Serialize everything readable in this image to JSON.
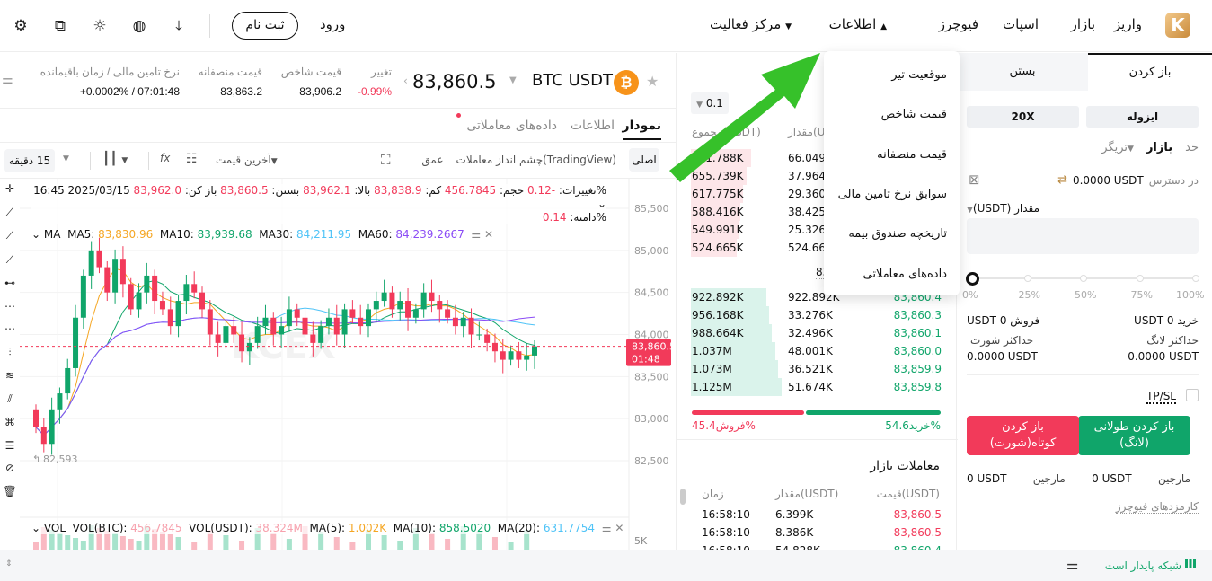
{
  "header": {
    "logo": "K",
    "nav": [
      "واریز",
      "بازار",
      "اسپات",
      "فیوچرز",
      "اطلاعات",
      "مرکز فعالیت"
    ],
    "login": "ورود",
    "signup": "ثبت نام",
    "icons": [
      "download-icon",
      "globe-icon",
      "sun-icon",
      "export-icon",
      "gear-icon"
    ]
  },
  "dropdown": {
    "items": [
      "موقعیت تیر",
      "قیمت شاخص",
      "قیمت منصفانه",
      "سوابق نرخ تامین مالی",
      "تاریخچه صندوق بیمه",
      "داده‌های معاملاتی"
    ]
  },
  "ticker": {
    "symbol": "BTC USDT",
    "price": "83,860.5",
    "change_label": "تغییر",
    "change": "-0.99%",
    "index_label": "قیمت شاخص",
    "index": "83,906.2",
    "fair_label": "قیمت منصفانه",
    "fair": "83,863.2",
    "funding_label": "نرخ تامین مالی / زمان باقیمانده",
    "funding": "+0.0002% / 07:01:48"
  },
  "tabs": [
    "نمودار",
    "اطلاعات",
    "داده‌های معاملاتی"
  ],
  "toolbar": {
    "basic": "اصلی",
    "tradingview": "چشم انداز معاملات(TradingView)",
    "depth": "عمق",
    "last_price": "آخرین قیمت",
    "interval": "15 دقیقه"
  },
  "ohlc": {
    "line1": "2025/03/15 16:45",
    "open_l": "باز کن:",
    "open": "83,962.0",
    "close_l": "بستن:",
    "close": "83,860.5",
    "high_l": "بالا:",
    "high": "83,962.1",
    "low_l": "کم:",
    "low": "83,838.9",
    "vol_l": "حجم:",
    "vol": "456.7845",
    "chg_l": "%تغییرات:",
    "chg": "-0.12",
    "amp_l": "%دامنه:",
    "amp": "0.14"
  },
  "ma": {
    "label": "MA",
    "ma5": "MA5: ",
    "ma5v": "83,830.96",
    "ma10": "MA10: ",
    "ma10v": "83,939.68",
    "ma30": "MA30: ",
    "ma30v": "84,211.95",
    "ma60": "MA60: ",
    "ma60v": "84,239.2667"
  },
  "vol": {
    "label": "VOL",
    "btc": "VOL(BTC): ",
    "btcv": "456.7845",
    "usdt": "VOL(USDT): ",
    "usdtv": "38.324M",
    "m5": "MA(5): ",
    "m5v": "1.002K",
    "m10": "MA(10): ",
    "m10v": "858.5020",
    "m20": "MA(20): ",
    "m20v": "631.7754",
    "axis": "5K"
  },
  "chart_data": {
    "type": "candlestick",
    "y_ticks": [
      "85,500",
      "85,000",
      "84,500",
      "84,000",
      "83,500",
      "83,000",
      "82,500"
    ],
    "ylim": [
      82500,
      85500
    ],
    "current_price": "83,860.5",
    "countdown": "01:48",
    "low_marker": "82,593",
    "watermark": "KCEX",
    "colors": {
      "up": "#10a56a",
      "down": "#f23a5a",
      "ma5": "#f5a623",
      "ma10": "#10a56a",
      "ma30": "#4fc3f7",
      "ma60": "#8b4cf6"
    },
    "closes": [
      82900,
      82700,
      83100,
      83300,
      83600,
      84200,
      84700,
      85000,
      84800,
      84500,
      84900,
      84600,
      84300,
      84500,
      84700,
      84400,
      84300,
      84100,
      84400,
      84600,
      84500,
      84300,
      84000,
      83900,
      84100,
      84000,
      83800,
      83900,
      84100,
      84200,
      84000,
      84100,
      84300,
      84200,
      84000,
      83900,
      84100,
      84200,
      84000,
      84300,
      84200,
      84100,
      84300,
      84400,
      84500,
      84300,
      84400,
      84200,
      84300,
      84500,
      84400,
      84300,
      84200,
      84100,
      84200,
      84000,
      84000,
      83900,
      83800,
      83700,
      83800,
      83700,
      83750,
      83860
    ]
  },
  "orderbook": {
    "precision": "0.1",
    "col_total": "مجموع(USDT)",
    "col_qty": "مقدار(USDT)",
    "mid": "83",
    "asks": [
      [
        "721.788K",
        "66.049K"
      ],
      [
        "655.739K",
        "37.964K"
      ],
      [
        "617.775K",
        "29.360K"
      ],
      [
        "588.416K",
        "38.425K"
      ],
      [
        "549.991K",
        "25.326K"
      ],
      [
        "524.665K",
        "524.665K"
      ]
    ],
    "bids": [
      [
        "922.892K",
        "922.892K",
        "83,860.4"
      ],
      [
        "956.168K",
        "33.276K",
        "83,860.3"
      ],
      [
        "988.664K",
        "32.496K",
        "83,860.1"
      ],
      [
        "1.037M",
        "48.001K",
        "83,860.0"
      ],
      [
        "1.073M",
        "36.521K",
        "83,859.9"
      ],
      [
        "1.125M",
        "51.674K",
        "83,859.8"
      ]
    ],
    "buy_pct": "خرید54.6%",
    "sell_pct": "فروش45.4%",
    "buy_ratio": 54.6
  },
  "trades": {
    "title": "معاملات بازار",
    "col_price": "قیمت(USDT)",
    "col_qty": "مقدار(USDT)",
    "col_time": "زمان",
    "rows": [
      [
        "83,860.5",
        "6.399K",
        "16:58:10"
      ],
      [
        "83,860.5",
        "8.386K",
        "16:58:10"
      ],
      [
        "83,860.4",
        "54.828K",
        "16:58:10"
      ]
    ]
  },
  "order": {
    "tab_open": "باز کردن",
    "tab_close": "بستن",
    "margin_mode": "ایزوله",
    "leverage": "20X",
    "types": [
      "حد",
      "بازار",
      "تریگر"
    ],
    "avail_label": "در دسترس",
    "avail": "0.0000 USDT",
    "qty_label": "مقدار (USDT)",
    "qty_value": "",
    "slider_pct": 0,
    "marks": [
      "0%",
      "25%",
      "50%",
      "75%",
      "100%"
    ],
    "buy": "خرید 0 USDT",
    "sell": "فروش 0 USDT",
    "max_long_l": "حداکثر لانگ",
    "max_long": "0.0000 USDT",
    "max_short_l": "حداکثر شورت",
    "max_short": "0.0000 USDT",
    "tpsl": "TP/SL",
    "long_btn": "باز کردن طولانی (لانگ)",
    "short_btn": "باز کردن کوتاه(شورت)",
    "margin_l": "مارجین",
    "margin_long": "0 USDT",
    "margin_short_l": "مارجین",
    "margin_short": "0 USDT",
    "fees": "کارمزدهای فیوچرز"
  },
  "status": {
    "network": "شبکه پایدار است"
  }
}
